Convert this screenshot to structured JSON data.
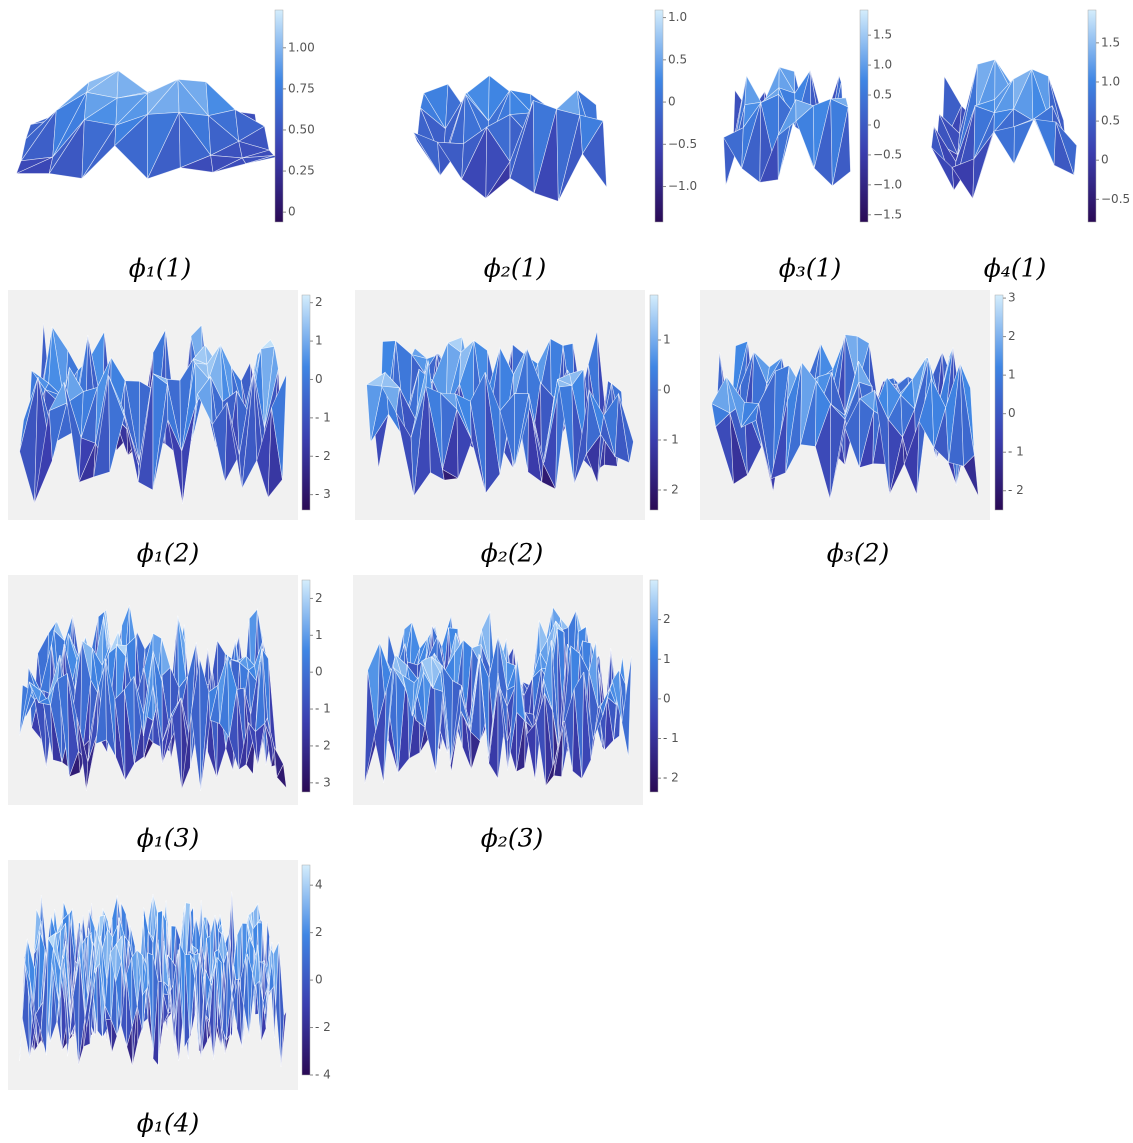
{
  "panels": [
    {
      "caption": "ϕ₁(1)",
      "colorbar": {
        "lim": [
          -0.06,
          1.23
        ],
        "ticks": [
          0,
          {
            "value": 0.25,
            "label": "0.25"
          },
          {
            "value": 0.5,
            "label": "0.50"
          },
          {
            "value": 0.75,
            "label": "0.75"
          },
          {
            "value": 1,
            "label": "1.00"
          }
        ]
      }
    },
    {
      "caption": "ϕ₂(1)",
      "colorbar": {
        "lim": [
          -1.42,
          1.09
        ],
        "ticks": [
          {
            "value": -1,
            "label": "−1.0"
          },
          {
            "value": -0.5,
            "label": "−0.5"
          },
          0,
          0.5,
          {
            "value": 1,
            "label": "1.0"
          }
        ]
      }
    },
    {
      "caption": "ϕ₃(1)",
      "colorbar": {
        "lim": [
          -1.62,
          1.92
        ],
        "ticks": [
          {
            "value": -1.5,
            "label": "−1.5"
          },
          {
            "value": -1,
            "label": "−1.0"
          },
          {
            "value": -0.5,
            "label": "−0.5"
          },
          0,
          0.5,
          {
            "value": 1,
            "label": "1.0"
          },
          1.5
        ]
      }
    },
    {
      "caption": "ϕ₄(1)",
      "colorbar": {
        "lim": [
          -0.79,
          1.92
        ],
        "ticks": [
          {
            "value": -0.5,
            "label": "−0.5"
          },
          0,
          0.5,
          {
            "value": 1,
            "label": "1.0"
          },
          1.5
        ]
      }
    },
    {
      "caption": "ϕ₁(2)",
      "colorbar": {
        "lim": [
          -3.4,
          2.2
        ],
        "ticks": [
          {
            "value": -3,
            "label": "- 3"
          },
          {
            "value": -2,
            "label": "- 2"
          },
          {
            "value": -1,
            "label": "- 1"
          },
          0,
          1,
          2
        ]
      }
    },
    {
      "caption": "ϕ₂(2)",
      "colorbar": {
        "lim": [
          -2.4,
          1.9
        ],
        "ticks": [
          {
            "value": -2,
            "label": "- 2"
          },
          {
            "value": -1,
            "label": "- 1"
          },
          0,
          1
        ]
      }
    },
    {
      "caption": "ϕ₃(2)",
      "colorbar": {
        "lim": [
          -2.5,
          3.08
        ],
        "ticks": [
          {
            "value": -2,
            "label": "- 2"
          },
          {
            "value": -1,
            "label": "- 1"
          },
          0,
          1,
          2,
          3
        ]
      }
    },
    {
      "caption": "ϕ₁(3)",
      "colorbar": {
        "lim": [
          -3.25,
          2.5
        ],
        "ticks": [
          {
            "value": -3,
            "label": "- 3"
          },
          {
            "value": -2,
            "label": "- 2"
          },
          {
            "value": -1,
            "label": "- 1"
          },
          0,
          1,
          2
        ]
      }
    },
    {
      "caption": "ϕ₂(3)",
      "colorbar": {
        "lim": [
          -2.35,
          3.0
        ],
        "ticks": [
          {
            "value": -2,
            "label": "- 2"
          },
          {
            "value": -1,
            "label": "- 1"
          },
          0,
          1,
          2
        ]
      }
    },
    {
      "caption": "ϕ₁(4)",
      "colorbar": {
        "lim": [
          -4.0,
          4.85
        ],
        "ticks": [
          {
            "value": -4,
            "label": "- 4"
          },
          {
            "value": -2,
            "label": "- 2"
          },
          0,
          2,
          4
        ]
      }
    }
  ],
  "colorscale": [
    "#2a0a55",
    "#3b3fb0",
    "#3f86e4",
    "#d4edfc"
  ]
}
